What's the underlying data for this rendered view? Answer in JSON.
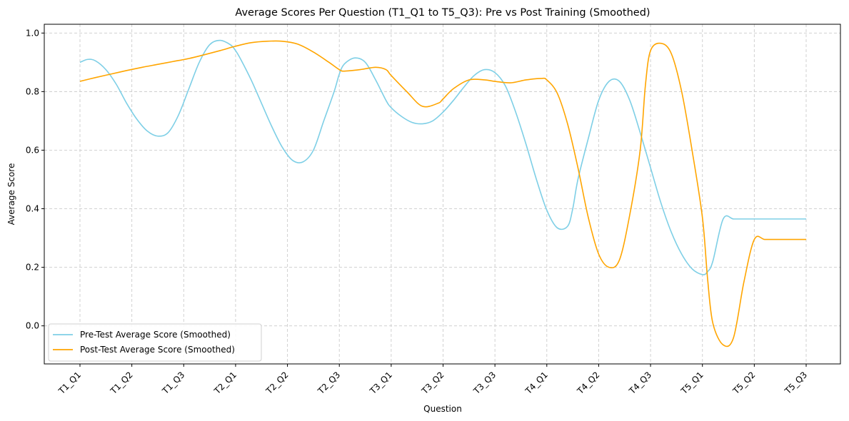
{
  "chart_data": {
    "type": "line",
    "title": "Average Scores Per Question (T1_Q1 to T5_Q3): Pre vs Post Training (Smoothed)",
    "xlabel": "Question",
    "ylabel": "Average Score",
    "categories": [
      "T1_Q1",
      "T1_Q2",
      "T1_Q3",
      "T2_Q1",
      "T2_Q2",
      "T2_Q3",
      "T3_Q1",
      "T3_Q2",
      "T3_Q3",
      "T4_Q1",
      "T4_Q2",
      "T4_Q3",
      "T5_Q1",
      "T5_Q2",
      "T5_Q3"
    ],
    "yticks": [
      "0.0",
      "0.2",
      "0.4",
      "0.6",
      "0.8",
      "1.0"
    ],
    "ylim": [
      -0.13,
      1.03
    ],
    "grid": true,
    "grid_style": "dashed",
    "legend_position": "lower-left",
    "series": [
      {
        "name": "Pre-Test Average Score (Smoothed)",
        "color": "#7ecfe6",
        "x": [
          0,
          0.15,
          0.3,
          0.5,
          0.7,
          0.9,
          1.1,
          1.3,
          1.5,
          1.7,
          1.9,
          2.1,
          2.3,
          2.5,
          2.7,
          2.9,
          3.0,
          3.1,
          3.3,
          3.5,
          3.7,
          3.9,
          4.1,
          4.3,
          4.5,
          4.7,
          4.9,
          5.0,
          5.1,
          5.3,
          5.5,
          5.7,
          5.9,
          6.0,
          6.2,
          6.4,
          6.6,
          6.8,
          7.0,
          7.2,
          7.4,
          7.6,
          7.8,
          8.0,
          8.2,
          8.4,
          8.6,
          8.8,
          9.0,
          9.2,
          9.4,
          9.5,
          9.6,
          9.8,
          10.0,
          10.2,
          10.4,
          10.6,
          10.8,
          11.0,
          11.2,
          11.4,
          11.6,
          11.8,
          12.0,
          12.1,
          12.2,
          12.4,
          12.6,
          12.8,
          13.0,
          13.2,
          13.4,
          13.6,
          13.8,
          14.0
        ],
        "y": [
          0.9,
          0.91,
          0.905,
          0.875,
          0.825,
          0.76,
          0.705,
          0.665,
          0.648,
          0.66,
          0.72,
          0.81,
          0.9,
          0.96,
          0.975,
          0.96,
          0.94,
          0.91,
          0.84,
          0.76,
          0.68,
          0.61,
          0.565,
          0.56,
          0.6,
          0.7,
          0.8,
          0.86,
          0.895,
          0.915,
          0.9,
          0.84,
          0.77,
          0.745,
          0.715,
          0.695,
          0.69,
          0.7,
          0.73,
          0.77,
          0.815,
          0.855,
          0.875,
          0.865,
          0.82,
          0.73,
          0.62,
          0.5,
          0.395,
          0.335,
          0.34,
          0.4,
          0.5,
          0.64,
          0.77,
          0.835,
          0.835,
          0.77,
          0.66,
          0.54,
          0.42,
          0.32,
          0.245,
          0.195,
          0.175,
          0.185,
          0.22,
          0.365,
          0.365,
          0.365,
          0.365,
          0.365,
          0.365,
          0.365,
          0.365,
          0.365
        ]
      },
      {
        "name": "Post-Test Average Score (Smoothed)",
        "color": "#ffa500",
        "x": [
          0,
          0.3,
          0.6,
          0.9,
          1.2,
          1.5,
          1.8,
          2.1,
          2.4,
          2.7,
          3.0,
          3.3,
          3.6,
          3.9,
          4.2,
          4.5,
          4.8,
          5.0,
          5.1,
          5.4,
          5.7,
          5.9,
          6.0,
          6.3,
          6.6,
          6.9,
          7.0,
          7.2,
          7.5,
          7.8,
          8.0,
          8.3,
          8.6,
          8.9,
          9.0,
          9.2,
          9.4,
          9.6,
          9.8,
          10.0,
          10.2,
          10.4,
          10.6,
          10.8,
          10.9,
          11.0,
          11.2,
          11.4,
          11.6,
          11.8,
          12.0,
          12.1,
          12.2,
          12.4,
          12.6,
          12.8,
          13.0,
          13.2,
          13.4,
          13.6,
          13.8,
          14.0
        ],
        "y": [
          0.835,
          0.848,
          0.86,
          0.872,
          0.883,
          0.893,
          0.903,
          0.913,
          0.926,
          0.94,
          0.955,
          0.967,
          0.972,
          0.972,
          0.962,
          0.935,
          0.9,
          0.875,
          0.87,
          0.875,
          0.883,
          0.875,
          0.855,
          0.8,
          0.75,
          0.76,
          0.775,
          0.81,
          0.84,
          0.84,
          0.835,
          0.83,
          0.84,
          0.845,
          0.84,
          0.795,
          0.69,
          0.54,
          0.37,
          0.245,
          0.2,
          0.225,
          0.38,
          0.6,
          0.82,
          0.94,
          0.965,
          0.93,
          0.8,
          0.6,
          0.37,
          0.16,
          0.01,
          -0.065,
          -0.04,
          0.15,
          0.295,
          0.295,
          0.295,
          0.295,
          0.295,
          0.295
        ]
      }
    ]
  }
}
